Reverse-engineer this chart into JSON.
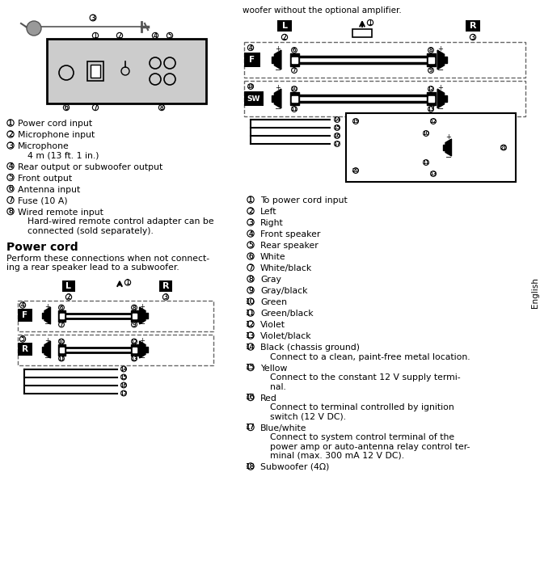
{
  "bg_color": "#ffffff",
  "top_text": "woofer without the optional amplifier.",
  "english_label": "English",
  "left_items": [
    {
      "num": "1",
      "text": "Power cord input"
    },
    {
      "num": "2",
      "text": "Microphone input"
    },
    {
      "num": "3",
      "text": "Microphone\n4 m (13 ft. 1 in.)"
    },
    {
      "num": "4",
      "text": "Rear output or subwoofer output"
    },
    {
      "num": "5",
      "text": "Front output"
    },
    {
      "num": "6",
      "text": "Antenna input"
    },
    {
      "num": "7",
      "text": "Fuse (10 A)"
    },
    {
      "num": "8",
      "text": "Wired remote input\nHard-wired remote control adapter can be\nconnected (sold separately)."
    }
  ],
  "right_items": [
    {
      "num": "1",
      "text": "To power cord input"
    },
    {
      "num": "2",
      "text": "Left"
    },
    {
      "num": "3",
      "text": "Right"
    },
    {
      "num": "4",
      "text": "Front speaker"
    },
    {
      "num": "5",
      "text": "Rear speaker"
    },
    {
      "num": "6",
      "text": "White"
    },
    {
      "num": "7",
      "text": "White/black"
    },
    {
      "num": "8",
      "text": "Gray"
    },
    {
      "num": "9",
      "text": "Gray/black"
    },
    {
      "num": "10",
      "text": "Green"
    },
    {
      "num": "11",
      "text": "Green/black"
    },
    {
      "num": "12",
      "text": "Violet"
    },
    {
      "num": "13",
      "text": "Violet/black"
    },
    {
      "num": "14",
      "text": "Black (chassis ground)\nConnect to a clean, paint-free metal location."
    },
    {
      "num": "15",
      "text": "Yellow\nConnect to the constant 12 V supply termi-\nnal."
    },
    {
      "num": "16",
      "text": "Red\nConnect to terminal controlled by ignition\nswitch (12 V DC)."
    },
    {
      "num": "17",
      "text": "Blue/white\nConnect to system control terminal of the\npower amp or auto-antenna relay control ter-\nminal (max. 300 mA 12 V DC)."
    },
    {
      "num": "18",
      "text": "Subwoofer (4Ω)"
    }
  ],
  "power_cord_title": "Power cord",
  "power_cord_text": "Perform these connections when not connect-\ning a rear speaker lead to a subwoofer."
}
